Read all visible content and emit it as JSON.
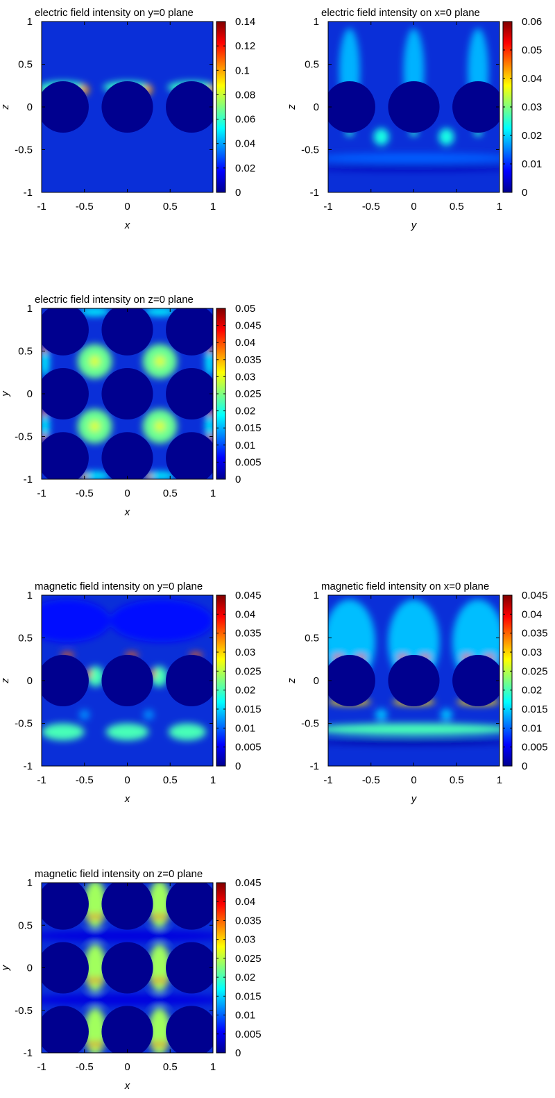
{
  "palette": {
    "colormap": [
      "#00008f",
      "#0000ff",
      "#007fff",
      "#00ffff",
      "#7fff7f",
      "#ffff00",
      "#ff7f00",
      "#ff0000",
      "#7f0000"
    ],
    "inclusion": "#00008f",
    "background": "#0a2fd8",
    "frame": "#000000"
  },
  "chart_data": [
    {
      "id": "e-y0",
      "type": "heatmap",
      "title": "electric field intensity on y=0 plane",
      "xlabel": "x",
      "ylabel": "z",
      "xlim": [
        -1,
        1
      ],
      "ylim": [
        -1,
        1
      ],
      "xticks": [
        "-1",
        "-0.5",
        "0",
        "0.5",
        "1"
      ],
      "yticks": [
        "-1",
        "-0.5",
        "0",
        "0.5",
        "1"
      ],
      "colorbar": {
        "min": 0,
        "max": 0.14,
        "ticks": [
          "0",
          "0.02",
          "0.04",
          "0.06",
          "0.08",
          "0.1",
          "0.12",
          "0.14"
        ]
      },
      "inclusions": [
        {
          "cx": -0.75,
          "cy": 0,
          "r": 0.3
        },
        {
          "cx": 0,
          "cy": 0,
          "r": 0.3
        },
        {
          "cx": 0.75,
          "cy": 0,
          "r": 0.3
        }
      ],
      "hotspots": [
        {
          "x": -0.75,
          "y": 0.23,
          "rx": 0.28,
          "ry": 0.07,
          "v": 0.06
        },
        {
          "x": 0,
          "y": 0.23,
          "rx": 0.28,
          "ry": 0.07,
          "v": 0.06
        },
        {
          "x": 0.75,
          "y": 0.23,
          "rx": 0.28,
          "ry": 0.07,
          "v": 0.06
        },
        {
          "x": -0.5,
          "y": 0.2,
          "rx": 0.05,
          "ry": 0.06,
          "v": 0.1
        },
        {
          "x": 0.24,
          "y": 0.2,
          "rx": 0.05,
          "ry": 0.06,
          "v": 0.1
        },
        {
          "x": 0.98,
          "y": 0.2,
          "rx": 0.04,
          "ry": 0.06,
          "v": 0.1
        },
        {
          "x": -0.98,
          "y": 0.15,
          "rx": 0.04,
          "ry": 0.05,
          "v": 0.07
        }
      ]
    },
    {
      "id": "e-x0",
      "type": "heatmap",
      "title": "electric field intensity on x=0 plane",
      "xlabel": "y",
      "ylabel": "z",
      "xlim": [
        -1,
        1
      ],
      "ylim": [
        -1,
        1
      ],
      "xticks": [
        "-1",
        "-0.5",
        "0",
        "0.5",
        "1"
      ],
      "yticks": [
        "-1",
        "-0.5",
        "0",
        "0.5",
        "1"
      ],
      "colorbar": {
        "min": 0,
        "max": 0.06,
        "ticks": [
          "0",
          "0.01",
          "0.02",
          "0.03",
          "0.04",
          "0.05",
          "0.06"
        ]
      },
      "inclusions": [
        {
          "cx": -0.75,
          "cy": 0,
          "r": 0.3
        },
        {
          "cx": 0,
          "cy": 0,
          "r": 0.3
        },
        {
          "cx": 0.75,
          "cy": 0,
          "r": 0.3
        }
      ],
      "hotspots": [
        {
          "x": -0.75,
          "y": 0.3,
          "rx": 0.08,
          "ry": 0.04,
          "v": 0.055
        },
        {
          "x": 0,
          "y": 0.3,
          "rx": 0.08,
          "ry": 0.04,
          "v": 0.055
        },
        {
          "x": 0.75,
          "y": 0.3,
          "rx": 0.08,
          "ry": 0.04,
          "v": 0.055
        },
        {
          "x": -0.75,
          "y": 0.42,
          "rx": 0.12,
          "ry": 0.5,
          "v": 0.018
        },
        {
          "x": 0,
          "y": 0.42,
          "rx": 0.12,
          "ry": 0.5,
          "v": 0.018
        },
        {
          "x": 0.75,
          "y": 0.42,
          "rx": 0.12,
          "ry": 0.5,
          "v": 0.018
        },
        {
          "x": -0.38,
          "y": -0.35,
          "rx": 0.09,
          "ry": 0.1,
          "v": 0.024
        },
        {
          "x": 0.38,
          "y": -0.35,
          "rx": 0.09,
          "ry": 0.1,
          "v": 0.024
        },
        {
          "x": -0.75,
          "y": -0.3,
          "rx": 0.05,
          "ry": 0.04,
          "v": 0.025
        },
        {
          "x": 0,
          "y": -0.3,
          "rx": 0.05,
          "ry": 0.04,
          "v": 0.025
        },
        {
          "x": 0.75,
          "y": -0.3,
          "rx": 0.05,
          "ry": 0.04,
          "v": 0.025
        },
        {
          "x": 0,
          "y": -0.72,
          "rx": 1.2,
          "ry": 0.03,
          "v": 0.003
        },
        {
          "x": 0,
          "y": -0.6,
          "rx": 1.2,
          "ry": 0.06,
          "v": 0.013
        }
      ]
    },
    {
      "id": "e-z0",
      "type": "heatmap",
      "title": "electric field intensity on z=0 plane",
      "xlabel": "x",
      "ylabel": "y",
      "xlim": [
        -1,
        1
      ],
      "ylim": [
        -1,
        1
      ],
      "xticks": [
        "-1",
        "-0.5",
        "0",
        "0.5",
        "1"
      ],
      "yticks": [
        "-1",
        "-0.5",
        "0",
        "0.5",
        "1"
      ],
      "colorbar": {
        "min": 0,
        "max": 0.05,
        "ticks": [
          "0",
          "0.005",
          "0.01",
          "0.015",
          "0.02",
          "0.025",
          "0.03",
          "0.035",
          "0.04",
          "0.045",
          "0.05"
        ]
      },
      "inclusions": [
        {
          "cx": -0.75,
          "cy": 0.75,
          "r": 0.3
        },
        {
          "cx": 0,
          "cy": 0.75,
          "r": 0.3
        },
        {
          "cx": 0.75,
          "cy": 0.75,
          "r": 0.3
        },
        {
          "cx": -0.75,
          "cy": 0,
          "r": 0.3
        },
        {
          "cx": 0,
          "cy": 0,
          "r": 0.3
        },
        {
          "cx": 0.75,
          "cy": 0,
          "r": 0.3
        },
        {
          "cx": -0.75,
          "cy": -0.75,
          "r": 0.3
        },
        {
          "cx": 0,
          "cy": -0.75,
          "r": 0.3
        },
        {
          "cx": 0.75,
          "cy": -0.75,
          "r": 0.3
        }
      ],
      "hotspots": [
        {
          "x": -0.38,
          "y": 0.38,
          "rx": 0.2,
          "ry": 0.2,
          "v": 0.024
        },
        {
          "x": 0.38,
          "y": 0.38,
          "rx": 0.2,
          "ry": 0.2,
          "v": 0.024
        },
        {
          "x": -0.38,
          "y": -0.38,
          "rx": 0.2,
          "ry": 0.2,
          "v": 0.024
        },
        {
          "x": 0.38,
          "y": -0.38,
          "rx": 0.2,
          "ry": 0.2,
          "v": 0.024
        },
        {
          "x": -0.38,
          "y": 0.38,
          "rx": 0.06,
          "ry": 0.06,
          "v": 0.03
        },
        {
          "x": 0.38,
          "y": 0.38,
          "rx": 0.06,
          "ry": 0.06,
          "v": 0.03
        },
        {
          "x": -0.38,
          "y": -0.38,
          "rx": 0.06,
          "ry": 0.06,
          "v": 0.03
        },
        {
          "x": 0.38,
          "y": -0.38,
          "rx": 0.06,
          "ry": 0.06,
          "v": 0.03
        },
        {
          "x": -0.96,
          "y": 0.38,
          "rx": 0.05,
          "ry": 0.18,
          "v": 0.018
        },
        {
          "x": 0.96,
          "y": 0.38,
          "rx": 0.05,
          "ry": 0.18,
          "v": 0.018
        },
        {
          "x": -0.96,
          "y": -0.38,
          "rx": 0.05,
          "ry": 0.18,
          "v": 0.018
        },
        {
          "x": 0.96,
          "y": -0.38,
          "rx": 0.05,
          "ry": 0.18,
          "v": 0.018
        },
        {
          "x": -0.38,
          "y": 0.96,
          "rx": 0.18,
          "ry": 0.05,
          "v": 0.018
        },
        {
          "x": 0.38,
          "y": 0.96,
          "rx": 0.18,
          "ry": 0.05,
          "v": 0.018
        },
        {
          "x": -0.38,
          "y": -0.96,
          "rx": 0.18,
          "ry": 0.05,
          "v": 0.018
        },
        {
          "x": 0.38,
          "y": -0.96,
          "rx": 0.18,
          "ry": 0.05,
          "v": 0.018
        },
        {
          "x": -0.97,
          "y": 0.52,
          "rx": 0.04,
          "ry": 0.04,
          "v": 0.04
        },
        {
          "x": -0.97,
          "y": -0.22,
          "rx": 0.04,
          "ry": 0.04,
          "v": 0.04
        },
        {
          "x": -0.97,
          "y": -0.52,
          "rx": 0.04,
          "ry": 0.04,
          "v": 0.04
        },
        {
          "x": 0.97,
          "y": 0.52,
          "rx": 0.04,
          "ry": 0.04,
          "v": 0.04
        },
        {
          "x": 0.97,
          "y": -0.22,
          "rx": 0.04,
          "ry": 0.04,
          "v": 0.04
        },
        {
          "x": 0.97,
          "y": -0.52,
          "rx": 0.04,
          "ry": 0.04,
          "v": 0.04
        },
        {
          "x": -0.5,
          "y": -0.97,
          "rx": 0.04,
          "ry": 0.04,
          "v": 0.035
        },
        {
          "x": 0.25,
          "y": -0.97,
          "rx": 0.04,
          "ry": 0.04,
          "v": 0.035
        }
      ]
    },
    {
      "id": "h-y0",
      "type": "heatmap",
      "title": "magnetic field intensity on y=0 plane",
      "xlabel": "x",
      "ylabel": "z",
      "xlim": [
        -1,
        1
      ],
      "ylim": [
        -1,
        1
      ],
      "xticks": [
        "-1",
        "-0.5",
        "0",
        "0.5",
        "1"
      ],
      "yticks": [
        "-1",
        "-0.5",
        "0",
        "0.5",
        "1"
      ],
      "colorbar": {
        "min": 0,
        "max": 0.045,
        "ticks": [
          "0",
          "0.005",
          "0.01",
          "0.015",
          "0.02",
          "0.025",
          "0.03",
          "0.035",
          "0.04",
          "0.045"
        ]
      },
      "inclusions": [
        {
          "cx": -0.75,
          "cy": 0,
          "r": 0.3
        },
        {
          "cx": 0,
          "cy": 0,
          "r": 0.3
        },
        {
          "cx": 0.75,
          "cy": 0,
          "r": 0.3
        }
      ],
      "hotspots": [
        {
          "x": -0.37,
          "y": 0.05,
          "rx": 0.1,
          "ry": 0.12,
          "v": 0.02
        },
        {
          "x": 0.37,
          "y": 0.05,
          "rx": 0.1,
          "ry": 0.12,
          "v": 0.02
        },
        {
          "x": -0.45,
          "y": 0.08,
          "rx": 0.03,
          "ry": 0.05,
          "v": 0.035
        },
        {
          "x": 0.3,
          "y": 0.08,
          "rx": 0.03,
          "ry": 0.05,
          "v": 0.035
        },
        {
          "x": -0.7,
          "y": 0.3,
          "rx": 0.08,
          "ry": 0.03,
          "v": 0.035
        },
        {
          "x": 0.05,
          "y": 0.3,
          "rx": 0.08,
          "ry": 0.03,
          "v": 0.035
        },
        {
          "x": 0.8,
          "y": 0.3,
          "rx": 0.08,
          "ry": 0.03,
          "v": 0.035
        },
        {
          "x": -0.75,
          "y": -0.6,
          "rx": 0.25,
          "ry": 0.1,
          "v": 0.02
        },
        {
          "x": 0,
          "y": -0.6,
          "rx": 0.25,
          "ry": 0.1,
          "v": 0.02
        },
        {
          "x": 0.7,
          "y": -0.6,
          "rx": 0.22,
          "ry": 0.1,
          "v": 0.02
        },
        {
          "x": -0.5,
          "y": -0.4,
          "rx": 0.06,
          "ry": 0.06,
          "v": 0.012
        },
        {
          "x": 0.25,
          "y": -0.4,
          "rx": 0.06,
          "ry": 0.06,
          "v": 0.012
        },
        {
          "x": -0.7,
          "y": 0.7,
          "rx": 0.5,
          "ry": 0.25,
          "v": 0.006
        },
        {
          "x": 0.4,
          "y": 0.7,
          "rx": 0.6,
          "ry": 0.25,
          "v": 0.006
        }
      ]
    },
    {
      "id": "h-x0",
      "type": "heatmap",
      "title": "magnetic field intensity on x=0 plane",
      "xlabel": "y",
      "ylabel": "z",
      "xlim": [
        -1,
        1
      ],
      "ylim": [
        -1,
        1
      ],
      "xticks": [
        "-1",
        "-0.5",
        "0",
        "0.5",
        "1"
      ],
      "yticks": [
        "-1",
        "-0.5",
        "0",
        "0.5",
        "1"
      ],
      "colorbar": {
        "min": 0,
        "max": 0.045,
        "ticks": [
          "0",
          "0.005",
          "0.01",
          "0.015",
          "0.02",
          "0.025",
          "0.03",
          "0.035",
          "0.04",
          "0.045"
        ]
      },
      "inclusions": [
        {
          "cx": -0.75,
          "cy": 0,
          "r": 0.3
        },
        {
          "cx": 0,
          "cy": 0,
          "r": 0.3
        },
        {
          "cx": 0.75,
          "cy": 0,
          "r": 0.3
        }
      ],
      "hotspots": [
        {
          "x": -0.75,
          "y": 0.45,
          "rx": 0.3,
          "ry": 0.5,
          "v": 0.014
        },
        {
          "x": 0,
          "y": 0.45,
          "rx": 0.3,
          "ry": 0.5,
          "v": 0.014
        },
        {
          "x": 0.75,
          "y": 0.45,
          "rx": 0.3,
          "ry": 0.5,
          "v": 0.014
        },
        {
          "x": -0.88,
          "y": 0.27,
          "rx": 0.06,
          "ry": 0.03,
          "v": 0.04
        },
        {
          "x": -0.62,
          "y": 0.27,
          "rx": 0.06,
          "ry": 0.03,
          "v": 0.04
        },
        {
          "x": -0.13,
          "y": 0.27,
          "rx": 0.06,
          "ry": 0.03,
          "v": 0.04
        },
        {
          "x": 0.13,
          "y": 0.27,
          "rx": 0.06,
          "ry": 0.03,
          "v": 0.04
        },
        {
          "x": 0.62,
          "y": 0.27,
          "rx": 0.06,
          "ry": 0.03,
          "v": 0.04
        },
        {
          "x": 0.88,
          "y": 0.27,
          "rx": 0.06,
          "ry": 0.03,
          "v": 0.04
        },
        {
          "x": 0,
          "y": -0.57,
          "rx": 1.2,
          "ry": 0.07,
          "v": 0.02
        },
        {
          "x": -0.75,
          "y": -0.25,
          "rx": 0.25,
          "ry": 0.04,
          "v": 0.03
        },
        {
          "x": 0,
          "y": -0.25,
          "rx": 0.25,
          "ry": 0.04,
          "v": 0.03
        },
        {
          "x": 0.75,
          "y": -0.25,
          "rx": 0.25,
          "ry": 0.04,
          "v": 0.03
        },
        {
          "x": -0.38,
          "y": -0.4,
          "rx": 0.07,
          "ry": 0.07,
          "v": 0.014
        },
        {
          "x": 0.38,
          "y": -0.4,
          "rx": 0.07,
          "ry": 0.07,
          "v": 0.014
        },
        {
          "x": 0,
          "y": -0.72,
          "rx": 1.2,
          "ry": 0.03,
          "v": 0.001
        }
      ]
    },
    {
      "id": "h-z0",
      "type": "heatmap",
      "title": "magnetic field intensity on z=0 plane",
      "xlabel": "x",
      "ylabel": "y",
      "xlim": [
        -1,
        1
      ],
      "ylim": [
        -1,
        1
      ],
      "xticks": [
        "-1",
        "-0.5",
        "0",
        "0.5",
        "1"
      ],
      "yticks": [
        "-1",
        "-0.5",
        "0",
        "0.5",
        "1"
      ],
      "colorbar": {
        "min": 0,
        "max": 0.045,
        "ticks": [
          "0",
          "0.005",
          "0.01",
          "0.015",
          "0.02",
          "0.025",
          "0.03",
          "0.035",
          "0.04",
          "0.045"
        ]
      },
      "inclusions": [
        {
          "cx": -0.75,
          "cy": 0.75,
          "r": 0.3
        },
        {
          "cx": 0,
          "cy": 0.75,
          "r": 0.3
        },
        {
          "cx": 0.75,
          "cy": 0.75,
          "r": 0.3
        },
        {
          "cx": -0.75,
          "cy": 0,
          "r": 0.3
        },
        {
          "cx": 0,
          "cy": 0,
          "r": 0.3
        },
        {
          "cx": 0.75,
          "cy": 0,
          "r": 0.3
        },
        {
          "cx": -0.75,
          "cy": -0.75,
          "r": 0.3
        },
        {
          "cx": 0,
          "cy": -0.75,
          "r": 0.3
        },
        {
          "cx": 0.75,
          "cy": -0.75,
          "r": 0.3
        }
      ],
      "hotspots": [
        {
          "x": -0.375,
          "y": 0.75,
          "rx": 0.13,
          "ry": 0.28,
          "v": 0.024
        },
        {
          "x": 0.375,
          "y": 0.75,
          "rx": 0.13,
          "ry": 0.28,
          "v": 0.024
        },
        {
          "x": -0.375,
          "y": 0,
          "rx": 0.13,
          "ry": 0.28,
          "v": 0.024
        },
        {
          "x": 0.375,
          "y": 0,
          "rx": 0.13,
          "ry": 0.28,
          "v": 0.024
        },
        {
          "x": -0.375,
          "y": -0.75,
          "rx": 0.13,
          "ry": 0.28,
          "v": 0.024
        },
        {
          "x": 0.375,
          "y": -0.75,
          "rx": 0.13,
          "ry": 0.28,
          "v": 0.024
        },
        {
          "x": -0.42,
          "y": 0.6,
          "rx": 0.03,
          "ry": 0.04,
          "v": 0.04
        },
        {
          "x": -0.33,
          "y": 0.6,
          "rx": 0.03,
          "ry": 0.04,
          "v": 0.04
        },
        {
          "x": 0.33,
          "y": 0.6,
          "rx": 0.03,
          "ry": 0.04,
          "v": 0.04
        },
        {
          "x": 0.42,
          "y": 0.6,
          "rx": 0.03,
          "ry": 0.04,
          "v": 0.04
        },
        {
          "x": -0.42,
          "y": -0.15,
          "rx": 0.03,
          "ry": 0.04,
          "v": 0.04
        },
        {
          "x": -0.33,
          "y": -0.15,
          "rx": 0.03,
          "ry": 0.04,
          "v": 0.04
        },
        {
          "x": 0.33,
          "y": -0.15,
          "rx": 0.03,
          "ry": 0.04,
          "v": 0.04
        },
        {
          "x": 0.42,
          "y": -0.15,
          "rx": 0.03,
          "ry": 0.04,
          "v": 0.04
        },
        {
          "x": -0.42,
          "y": -0.9,
          "rx": 0.03,
          "ry": 0.04,
          "v": 0.04
        },
        {
          "x": -0.33,
          "y": -0.9,
          "rx": 0.03,
          "ry": 0.04,
          "v": 0.04
        },
        {
          "x": 0.33,
          "y": -0.9,
          "rx": 0.03,
          "ry": 0.04,
          "v": 0.04
        },
        {
          "x": 0.42,
          "y": -0.9,
          "rx": 0.03,
          "ry": 0.04,
          "v": 0.04
        },
        {
          "x": 0,
          "y": 0.375,
          "rx": 1.2,
          "ry": 0.07,
          "v": 0.004
        },
        {
          "x": 0,
          "y": -0.375,
          "rx": 1.2,
          "ry": 0.07,
          "v": 0.004
        }
      ]
    }
  ]
}
